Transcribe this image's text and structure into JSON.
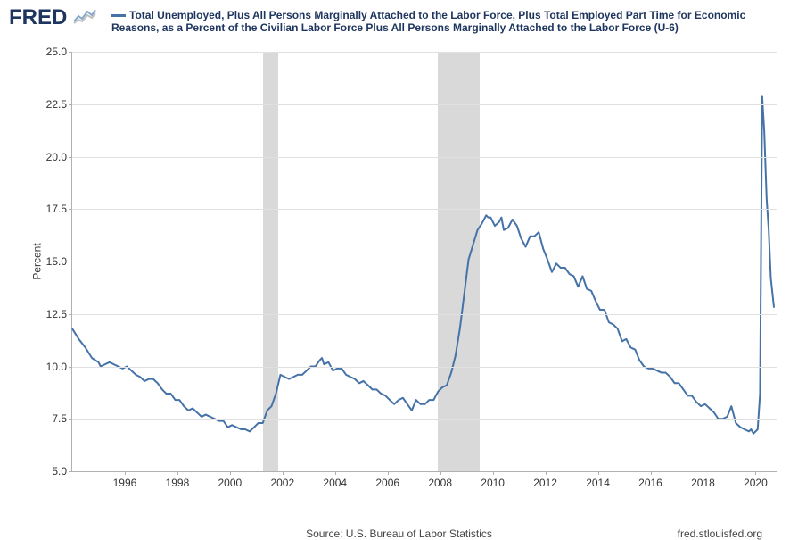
{
  "logo": {
    "text": "FRED"
  },
  "legend": {
    "label": "Total Unemployed, Plus All Persons Marginally Attached to the Labor Force, Plus Total Employed Part Time for Economic Reasons, as a Percent of the Civilian Labor Force Plus All Persons Marginally Attached to the Labor Force (U-6)"
  },
  "chart": {
    "type": "line",
    "ylabel": "Percent",
    "x_domain": [
      1994.0,
      2020.8
    ],
    "y_domain": [
      5.0,
      25.0
    ],
    "y_ticks": [
      5.0,
      7.5,
      10.0,
      12.5,
      15.0,
      17.5,
      20.0,
      22.5,
      25.0
    ],
    "x_ticks": [
      1996,
      1998,
      2000,
      2002,
      2004,
      2006,
      2008,
      2010,
      2012,
      2014,
      2016,
      2018,
      2020
    ],
    "grid_color": "#e0e0e0",
    "axis_color": "#b0b0b0",
    "background_color": "#ffffff",
    "recession_color": "#d9d9d9",
    "series_color": "#4572a7",
    "series_width": 2,
    "tick_fontsize": 12,
    "label_fontsize": 12,
    "legend_fontsize": 12,
    "legend_color": "#1e355e",
    "recessions": [
      {
        "start": 2001.25,
        "end": 2001.83
      },
      {
        "start": 2007.92,
        "end": 2009.5
      }
    ],
    "series": [
      {
        "x": 1994.0,
        "y": 11.8
      },
      {
        "x": 1994.25,
        "y": 11.3
      },
      {
        "x": 1994.5,
        "y": 10.9
      },
      {
        "x": 1994.75,
        "y": 10.4
      },
      {
        "x": 1995.0,
        "y": 10.2
      },
      {
        "x": 1995.08,
        "y": 10.0
      },
      {
        "x": 1995.25,
        "y": 10.1
      },
      {
        "x": 1995.42,
        "y": 10.2
      },
      {
        "x": 1995.58,
        "y": 10.1
      },
      {
        "x": 1995.75,
        "y": 10.0
      },
      {
        "x": 1995.92,
        "y": 9.9
      },
      {
        "x": 1996.08,
        "y": 10.0
      },
      {
        "x": 1996.25,
        "y": 9.8
      },
      {
        "x": 1996.42,
        "y": 9.6
      },
      {
        "x": 1996.58,
        "y": 9.5
      },
      {
        "x": 1996.75,
        "y": 9.3
      },
      {
        "x": 1996.92,
        "y": 9.4
      },
      {
        "x": 1997.08,
        "y": 9.4
      },
      {
        "x": 1997.25,
        "y": 9.2
      },
      {
        "x": 1997.42,
        "y": 8.9
      },
      {
        "x": 1997.58,
        "y": 8.7
      },
      {
        "x": 1997.75,
        "y": 8.7
      },
      {
        "x": 1997.92,
        "y": 8.4
      },
      {
        "x": 1998.08,
        "y": 8.4
      },
      {
        "x": 1998.25,
        "y": 8.1
      },
      {
        "x": 1998.42,
        "y": 7.9
      },
      {
        "x": 1998.58,
        "y": 8.0
      },
      {
        "x": 1998.75,
        "y": 7.8
      },
      {
        "x": 1998.92,
        "y": 7.6
      },
      {
        "x": 1999.08,
        "y": 7.7
      },
      {
        "x": 1999.25,
        "y": 7.6
      },
      {
        "x": 1999.42,
        "y": 7.5
      },
      {
        "x": 1999.58,
        "y": 7.4
      },
      {
        "x": 1999.75,
        "y": 7.4
      },
      {
        "x": 1999.92,
        "y": 7.1
      },
      {
        "x": 2000.08,
        "y": 7.2
      },
      {
        "x": 2000.25,
        "y": 7.1
      },
      {
        "x": 2000.42,
        "y": 7.0
      },
      {
        "x": 2000.58,
        "y": 7.0
      },
      {
        "x": 2000.75,
        "y": 6.9
      },
      {
        "x": 2000.92,
        "y": 7.1
      },
      {
        "x": 2001.08,
        "y": 7.3
      },
      {
        "x": 2001.25,
        "y": 7.3
      },
      {
        "x": 2001.42,
        "y": 7.9
      },
      {
        "x": 2001.58,
        "y": 8.1
      },
      {
        "x": 2001.75,
        "y": 8.7
      },
      {
        "x": 2001.92,
        "y": 9.6
      },
      {
        "x": 2002.08,
        "y": 9.5
      },
      {
        "x": 2002.25,
        "y": 9.4
      },
      {
        "x": 2002.42,
        "y": 9.5
      },
      {
        "x": 2002.58,
        "y": 9.6
      },
      {
        "x": 2002.75,
        "y": 9.6
      },
      {
        "x": 2002.92,
        "y": 9.8
      },
      {
        "x": 2003.08,
        "y": 10.0
      },
      {
        "x": 2003.25,
        "y": 10.0
      },
      {
        "x": 2003.42,
        "y": 10.3
      },
      {
        "x": 2003.5,
        "y": 10.4
      },
      {
        "x": 2003.58,
        "y": 10.1
      },
      {
        "x": 2003.75,
        "y": 10.2
      },
      {
        "x": 2003.92,
        "y": 9.8
      },
      {
        "x": 2004.08,
        "y": 9.9
      },
      {
        "x": 2004.25,
        "y": 9.9
      },
      {
        "x": 2004.42,
        "y": 9.6
      },
      {
        "x": 2004.58,
        "y": 9.5
      },
      {
        "x": 2004.75,
        "y": 9.4
      },
      {
        "x": 2004.92,
        "y": 9.2
      },
      {
        "x": 2005.08,
        "y": 9.3
      },
      {
        "x": 2005.25,
        "y": 9.1
      },
      {
        "x": 2005.42,
        "y": 8.9
      },
      {
        "x": 2005.58,
        "y": 8.9
      },
      {
        "x": 2005.75,
        "y": 8.7
      },
      {
        "x": 2005.92,
        "y": 8.6
      },
      {
        "x": 2006.08,
        "y": 8.4
      },
      {
        "x": 2006.25,
        "y": 8.2
      },
      {
        "x": 2006.42,
        "y": 8.4
      },
      {
        "x": 2006.58,
        "y": 8.5
      },
      {
        "x": 2006.75,
        "y": 8.2
      },
      {
        "x": 2006.92,
        "y": 7.9
      },
      {
        "x": 2007.08,
        "y": 8.4
      },
      {
        "x": 2007.25,
        "y": 8.2
      },
      {
        "x": 2007.42,
        "y": 8.2
      },
      {
        "x": 2007.58,
        "y": 8.4
      },
      {
        "x": 2007.75,
        "y": 8.4
      },
      {
        "x": 2007.92,
        "y": 8.8
      },
      {
        "x": 2008.08,
        "y": 9.0
      },
      {
        "x": 2008.25,
        "y": 9.1
      },
      {
        "x": 2008.42,
        "y": 9.7
      },
      {
        "x": 2008.58,
        "y": 10.5
      },
      {
        "x": 2008.75,
        "y": 11.8
      },
      {
        "x": 2008.92,
        "y": 13.5
      },
      {
        "x": 2009.08,
        "y": 15.1
      },
      {
        "x": 2009.25,
        "y": 15.8
      },
      {
        "x": 2009.42,
        "y": 16.5
      },
      {
        "x": 2009.58,
        "y": 16.8
      },
      {
        "x": 2009.75,
        "y": 17.2
      },
      {
        "x": 2009.83,
        "y": 17.1
      },
      {
        "x": 2009.92,
        "y": 17.1
      },
      {
        "x": 2010.08,
        "y": 16.7
      },
      {
        "x": 2010.25,
        "y": 16.9
      },
      {
        "x": 2010.33,
        "y": 17.1
      },
      {
        "x": 2010.42,
        "y": 16.5
      },
      {
        "x": 2010.58,
        "y": 16.6
      },
      {
        "x": 2010.75,
        "y": 17.0
      },
      {
        "x": 2010.92,
        "y": 16.7
      },
      {
        "x": 2011.08,
        "y": 16.1
      },
      {
        "x": 2011.25,
        "y": 15.7
      },
      {
        "x": 2011.42,
        "y": 16.2
      },
      {
        "x": 2011.58,
        "y": 16.2
      },
      {
        "x": 2011.75,
        "y": 16.4
      },
      {
        "x": 2011.92,
        "y": 15.6
      },
      {
        "x": 2012.08,
        "y": 15.1
      },
      {
        "x": 2012.25,
        "y": 14.5
      },
      {
        "x": 2012.42,
        "y": 14.9
      },
      {
        "x": 2012.58,
        "y": 14.7
      },
      {
        "x": 2012.75,
        "y": 14.7
      },
      {
        "x": 2012.92,
        "y": 14.4
      },
      {
        "x": 2013.08,
        "y": 14.3
      },
      {
        "x": 2013.25,
        "y": 13.8
      },
      {
        "x": 2013.42,
        "y": 14.3
      },
      {
        "x": 2013.58,
        "y": 13.7
      },
      {
        "x": 2013.75,
        "y": 13.6
      },
      {
        "x": 2013.92,
        "y": 13.1
      },
      {
        "x": 2014.08,
        "y": 12.7
      },
      {
        "x": 2014.25,
        "y": 12.7
      },
      {
        "x": 2014.42,
        "y": 12.1
      },
      {
        "x": 2014.58,
        "y": 12.0
      },
      {
        "x": 2014.75,
        "y": 11.8
      },
      {
        "x": 2014.92,
        "y": 11.2
      },
      {
        "x": 2015.08,
        "y": 11.3
      },
      {
        "x": 2015.25,
        "y": 10.9
      },
      {
        "x": 2015.42,
        "y": 10.8
      },
      {
        "x": 2015.58,
        "y": 10.3
      },
      {
        "x": 2015.75,
        "y": 10.0
      },
      {
        "x": 2015.92,
        "y": 9.9
      },
      {
        "x": 2016.08,
        "y": 9.9
      },
      {
        "x": 2016.25,
        "y": 9.8
      },
      {
        "x": 2016.42,
        "y": 9.7
      },
      {
        "x": 2016.58,
        "y": 9.7
      },
      {
        "x": 2016.75,
        "y": 9.5
      },
      {
        "x": 2016.92,
        "y": 9.2
      },
      {
        "x": 2017.08,
        "y": 9.2
      },
      {
        "x": 2017.25,
        "y": 8.9
      },
      {
        "x": 2017.42,
        "y": 8.6
      },
      {
        "x": 2017.58,
        "y": 8.6
      },
      {
        "x": 2017.75,
        "y": 8.3
      },
      {
        "x": 2017.92,
        "y": 8.1
      },
      {
        "x": 2018.08,
        "y": 8.2
      },
      {
        "x": 2018.25,
        "y": 8.0
      },
      {
        "x": 2018.42,
        "y": 7.8
      },
      {
        "x": 2018.58,
        "y": 7.5
      },
      {
        "x": 2018.75,
        "y": 7.5
      },
      {
        "x": 2018.92,
        "y": 7.6
      },
      {
        "x": 2019.08,
        "y": 8.1
      },
      {
        "x": 2019.25,
        "y": 7.3
      },
      {
        "x": 2019.42,
        "y": 7.1
      },
      {
        "x": 2019.58,
        "y": 7.0
      },
      {
        "x": 2019.75,
        "y": 6.9
      },
      {
        "x": 2019.83,
        "y": 7.0
      },
      {
        "x": 2019.92,
        "y": 6.8
      },
      {
        "x": 2020.08,
        "y": 7.0
      },
      {
        "x": 2020.17,
        "y": 8.7
      },
      {
        "x": 2020.25,
        "y": 22.9
      },
      {
        "x": 2020.33,
        "y": 21.2
      },
      {
        "x": 2020.42,
        "y": 18.0
      },
      {
        "x": 2020.5,
        "y": 16.5
      },
      {
        "x": 2020.58,
        "y": 14.2
      },
      {
        "x": 2020.7,
        "y": 12.8
      }
    ]
  },
  "footer": {
    "source": "Source: U.S. Bureau of Labor Statistics",
    "brand": "fred.stlouisfed.org"
  }
}
